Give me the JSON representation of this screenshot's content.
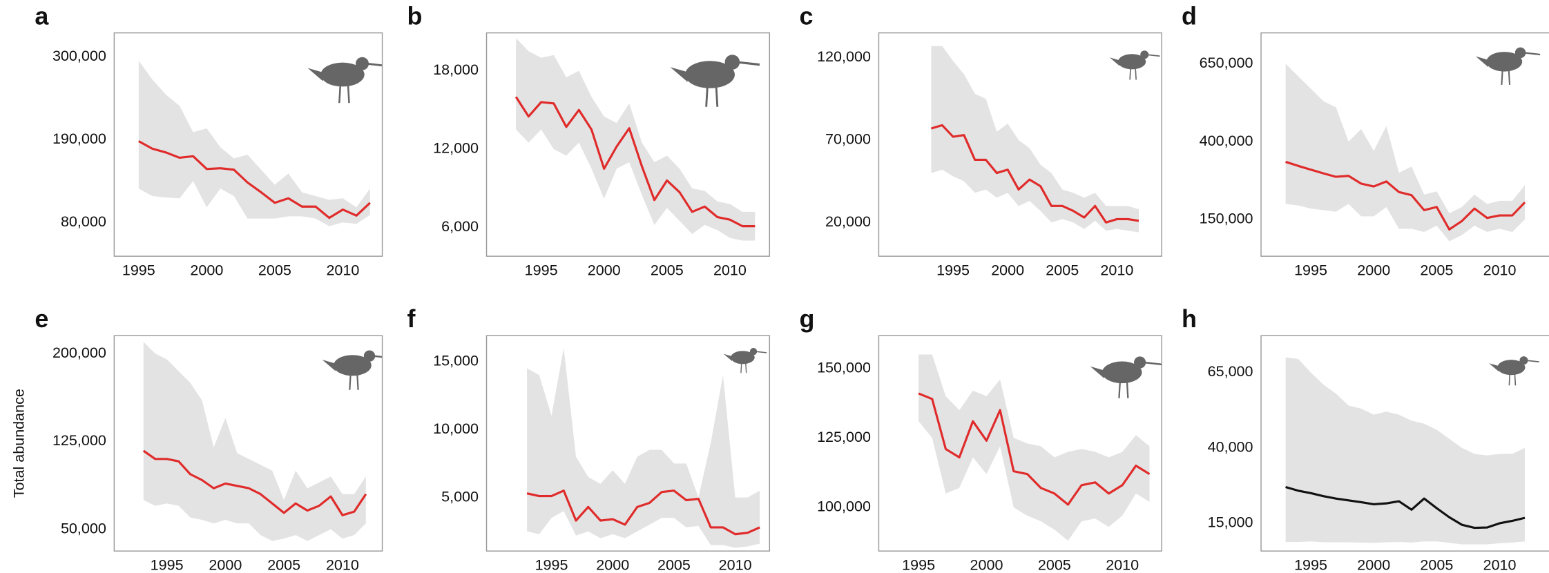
{
  "chart_data": [
    {
      "type": "line",
      "title": "a",
      "x": [
        1995,
        1996,
        1997,
        1998,
        1999,
        2000,
        2001,
        2002,
        2003,
        2004,
        2005,
        2006,
        2007,
        2008,
        2009,
        2010,
        2011,
        2012
      ],
      "values": [
        188000,
        178000,
        173000,
        166000,
        168000,
        151000,
        152000,
        150000,
        133000,
        120000,
        106000,
        112000,
        101000,
        101000,
        86000,
        97000,
        89000,
        106000
      ],
      "upper": [
        295000,
        270000,
        250000,
        235000,
        200000,
        205000,
        180000,
        165000,
        170000,
        150000,
        130000,
        145000,
        120000,
        115000,
        110000,
        112000,
        100000,
        125000
      ],
      "lower": [
        125000,
        115000,
        113000,
        112000,
        135000,
        100000,
        125000,
        115000,
        85000,
        85000,
        85000,
        88000,
        88000,
        85000,
        75000,
        80000,
        78000,
        90000
      ],
      "color": "#e02b2b",
      "band_color": "#e3e3e3",
      "xlim": [
        1993.2,
        2012.9
      ],
      "ylim": [
        35000,
        332000
      ],
      "xticks": [
        1995,
        2000,
        2005,
        2010
      ],
      "yticks": [
        {
          "value": 80000,
          "label": "80,000"
        },
        {
          "value": 190000,
          "label": "190,000"
        },
        {
          "value": 300000,
          "label": "300,000"
        }
      ]
    },
    {
      "type": "line",
      "title": "b",
      "x": [
        1993,
        1994,
        1995,
        1996,
        1997,
        1998,
        1999,
        2000,
        2001,
        2002,
        2003,
        2004,
        2005,
        2006,
        2007,
        2008,
        2009,
        2010,
        2011,
        2012
      ],
      "values": [
        16000,
        14500,
        15600,
        15500,
        13700,
        15000,
        13500,
        10500,
        12200,
        13600,
        10700,
        8100,
        9600,
        8700,
        7200,
        7600,
        6800,
        6600,
        6100,
        6100
      ],
      "upper": [
        20500,
        19500,
        19000,
        19200,
        17500,
        18000,
        16000,
        14500,
        14000,
        15500,
        12500,
        11000,
        11500,
        10500,
        9000,
        8800,
        8000,
        7800,
        7200,
        7200
      ],
      "lower": [
        13500,
        12500,
        13500,
        12000,
        11500,
        12500,
        10500,
        8200,
        10500,
        11000,
        8500,
        6200,
        7500,
        6500,
        5500,
        6200,
        5800,
        5200,
        5000,
        5000
      ],
      "color": "#e02b2b",
      "band_color": "#e3e3e3",
      "xlim": [
        1990.66,
        2013.15
      ],
      "ylim": [
        3800,
        20900
      ],
      "xticks": [
        1995,
        2000,
        2005,
        2010
      ],
      "yticks": [
        {
          "value": 6000,
          "label": "6,000"
        },
        {
          "value": 12000,
          "label": "12,000"
        },
        {
          "value": 18000,
          "label": "18,000"
        }
      ]
    },
    {
      "type": "line",
      "title": "c",
      "x": [
        1993,
        1994,
        1995,
        1996,
        1997,
        1998,
        1999,
        2000,
        2001,
        2002,
        2003,
        2004,
        2005,
        2006,
        2007,
        2008,
        2009,
        2010,
        2011,
        2012
      ],
      "values": [
        77000,
        79000,
        72000,
        73000,
        58000,
        58000,
        50000,
        52000,
        40000,
        46000,
        42000,
        30000,
        30000,
        27000,
        23000,
        30000,
        20000,
        22000,
        22000,
        21000
      ],
      "upper": [
        127000,
        127000,
        118000,
        110000,
        98000,
        95000,
        75000,
        80000,
        70000,
        65000,
        55000,
        50000,
        40000,
        38000,
        35000,
        38000,
        30000,
        30000,
        30000,
        28000
      ],
      "lower": [
        50000,
        52000,
        48000,
        45000,
        38000,
        40000,
        35000,
        38000,
        30000,
        33000,
        27000,
        20000,
        22000,
        20000,
        16000,
        21000,
        15000,
        16000,
        15000,
        14000
      ],
      "color": "#e02b2b",
      "band_color": "#e3e3e3",
      "xlim": [
        1988.2,
        2014.1
      ],
      "ylim": [
        -500,
        135000
      ],
      "xticks": [
        1995,
        2000,
        2005,
        2010
      ],
      "yticks": [
        {
          "value": 20000,
          "label": "20,000"
        },
        {
          "value": 70000,
          "label": "70,000"
        },
        {
          "value": 120000,
          "label": "120,000"
        }
      ]
    },
    {
      "type": "line",
      "title": "d",
      "x": [
        1993,
        1994,
        1995,
        1996,
        1997,
        1998,
        1999,
        2000,
        2001,
        2002,
        2003,
        2004,
        2005,
        2006,
        2007,
        2008,
        2009,
        2010,
        2011,
        2012
      ],
      "values": [
        335000,
        322000,
        310000,
        298000,
        287000,
        290000,
        265000,
        256000,
        272000,
        238000,
        228000,
        180000,
        190000,
        118000,
        145000,
        185000,
        155000,
        163000,
        163000,
        205000
      ],
      "upper": [
        650000,
        610000,
        570000,
        530000,
        510000,
        400000,
        440000,
        370000,
        450000,
        300000,
        320000,
        230000,
        240000,
        170000,
        190000,
        230000,
        200000,
        210000,
        210000,
        260000
      ],
      "lower": [
        200000,
        195000,
        185000,
        180000,
        175000,
        200000,
        160000,
        160000,
        190000,
        120000,
        120000,
        110000,
        130000,
        80000,
        100000,
        130000,
        110000,
        120000,
        110000,
        150000
      ],
      "color": "#e02b2b",
      "band_color": "#e3e3e3",
      "xlim": [
        1991.05,
        2015.1
      ],
      "ylim": [
        32000,
        749000
      ],
      "xticks": [
        1995,
        2000,
        2005,
        2010
      ],
      "yticks": [
        {
          "value": 150000,
          "label": "150,000"
        },
        {
          "value": 400000,
          "label": "400,000"
        },
        {
          "value": 650000,
          "label": "650,000"
        }
      ]
    },
    {
      "type": "line",
      "title": "e",
      "ylabel": "Total abundance",
      "x": [
        1993,
        1994,
        1995,
        1996,
        1997,
        1998,
        1999,
        2000,
        2001,
        2002,
        2003,
        2004,
        2005,
        2006,
        2007,
        2008,
        2009,
        2010,
        2011,
        2012
      ],
      "values": [
        117000,
        110000,
        110000,
        108000,
        97000,
        92000,
        85000,
        89000,
        87000,
        85000,
        80000,
        72000,
        64000,
        72000,
        66000,
        70000,
        78000,
        62000,
        65000,
        80000
      ],
      "upper": [
        210000,
        200000,
        195000,
        185000,
        175000,
        160000,
        120000,
        145000,
        115000,
        110000,
        105000,
        100000,
        75000,
        100000,
        85000,
        90000,
        95000,
        80000,
        80000,
        95000
      ],
      "lower": [
        75000,
        70000,
        72000,
        70000,
        60000,
        58000,
        55000,
        58000,
        55000,
        55000,
        45000,
        40000,
        42000,
        45000,
        40000,
        45000,
        50000,
        42000,
        45000,
        55000
      ],
      "color": "#e02b2b",
      "band_color": "#e3e3e3",
      "xlim": [
        1990.5,
        2013.4
      ],
      "ylim": [
        31400,
        215300
      ],
      "xticks": [
        1995,
        2000,
        2005,
        2010
      ],
      "yticks": [
        {
          "value": 50000,
          "label": "50,000"
        },
        {
          "value": 125000,
          "label": "125,000"
        },
        {
          "value": 200000,
          "label": "200,000"
        }
      ]
    },
    {
      "type": "line",
      "title": "f",
      "x": [
        1993,
        1994,
        1995,
        1996,
        1997,
        1998,
        1999,
        2000,
        2001,
        2002,
        2003,
        2004,
        2005,
        2006,
        2007,
        2008,
        2009,
        2010,
        2011,
        2012
      ],
      "values": [
        5300,
        5100,
        5100,
        5500,
        3300,
        4300,
        3300,
        3400,
        3000,
        4300,
        4600,
        5400,
        5500,
        4800,
        4900,
        2800,
        2800,
        2300,
        2400,
        2800
      ],
      "upper": [
        14500,
        14000,
        11000,
        16000,
        8000,
        6500,
        6000,
        7000,
        6000,
        8000,
        8500,
        8500,
        7500,
        7500,
        5000,
        9000,
        14000,
        5000,
        5000,
        5500
      ],
      "lower": [
        2500,
        2300,
        3500,
        4000,
        2200,
        2500,
        2000,
        2300,
        2000,
        2500,
        3000,
        3500,
        3500,
        2800,
        2900,
        1500,
        1500,
        1300,
        1400,
        1600
      ],
      "color": "#e02b2b",
      "band_color": "#e3e3e3",
      "xlim": [
        1989.7,
        2012.8
      ],
      "ylim": [
        1060,
        16900
      ],
      "xticks": [
        1995,
        2000,
        2005,
        2010
      ],
      "yticks": [
        {
          "value": 5000,
          "label": "5,000"
        },
        {
          "value": 10000,
          "label": "10,000"
        },
        {
          "value": 15000,
          "label": "15,000"
        }
      ]
    },
    {
      "type": "line",
      "title": "g",
      "x": [
        1995,
        1996,
        1997,
        1998,
        1999,
        2000,
        2001,
        2002,
        2003,
        2004,
        2005,
        2006,
        2007,
        2008,
        2009,
        2010,
        2011,
        2012
      ],
      "values": [
        141000,
        139000,
        121000,
        118000,
        131000,
        124000,
        135000,
        113000,
        112000,
        107000,
        105000,
        101000,
        108000,
        109000,
        105000,
        108000,
        115000,
        112000
      ],
      "upper": [
        155000,
        155000,
        140000,
        135000,
        142000,
        140000,
        146000,
        125000,
        123000,
        122000,
        118000,
        120000,
        121000,
        120000,
        118000,
        120000,
        126000,
        122000
      ],
      "lower": [
        131000,
        125000,
        105000,
        107000,
        118000,
        112000,
        122000,
        100000,
        97000,
        95000,
        92000,
        88000,
        95000,
        96000,
        93000,
        97000,
        105000,
        102000
      ],
      "color": "#e02b2b",
      "band_color": "#e3e3e3",
      "xlim": [
        1992.07,
        2012.9
      ],
      "ylim": [
        84300,
        161800
      ],
      "xticks": [
        1995,
        2000,
        2005,
        2010
      ],
      "yticks": [
        {
          "value": 100000,
          "label": "100,000"
        },
        {
          "value": 125000,
          "label": "125,000"
        },
        {
          "value": 150000,
          "label": "150,000"
        }
      ]
    },
    {
      "type": "line",
      "title": "h",
      "x": [
        1993,
        1994,
        1995,
        1996,
        1997,
        1998,
        1999,
        2000,
        2001,
        2002,
        2003,
        2004,
        2005,
        2006,
        2007,
        2008,
        2009,
        2010,
        2011,
        2012
      ],
      "values": [
        27000,
        25800,
        25000,
        24000,
        23200,
        22600,
        22000,
        21300,
        21600,
        22300,
        19500,
        23200,
        20000,
        17000,
        14500,
        13500,
        13600,
        15000,
        15800,
        16800
      ],
      "upper": [
        70000,
        69500,
        65000,
        61000,
        58000,
        54000,
        53000,
        51000,
        52000,
        51000,
        49000,
        48000,
        46000,
        43000,
        40000,
        38000,
        37500,
        38000,
        38000,
        40000
      ],
      "lower": [
        8800,
        8800,
        9000,
        8700,
        8700,
        8700,
        8600,
        8500,
        8700,
        8800,
        8600,
        9000,
        9000,
        8500,
        8000,
        8000,
        8000,
        8400,
        8600,
        9000
      ],
      "color": "#111111",
      "band_color": "#e3e3e3",
      "xlim": [
        1991.05,
        2015.1
      ],
      "ylim": [
        5800,
        77200
      ],
      "xticks": [
        1995,
        2000,
        2005,
        2010
      ],
      "yticks": [
        {
          "value": 15000,
          "label": "15,000"
        },
        {
          "value": 40000,
          "label": "40,000"
        },
        {
          "value": 65000,
          "label": "65,000"
        }
      ]
    }
  ]
}
